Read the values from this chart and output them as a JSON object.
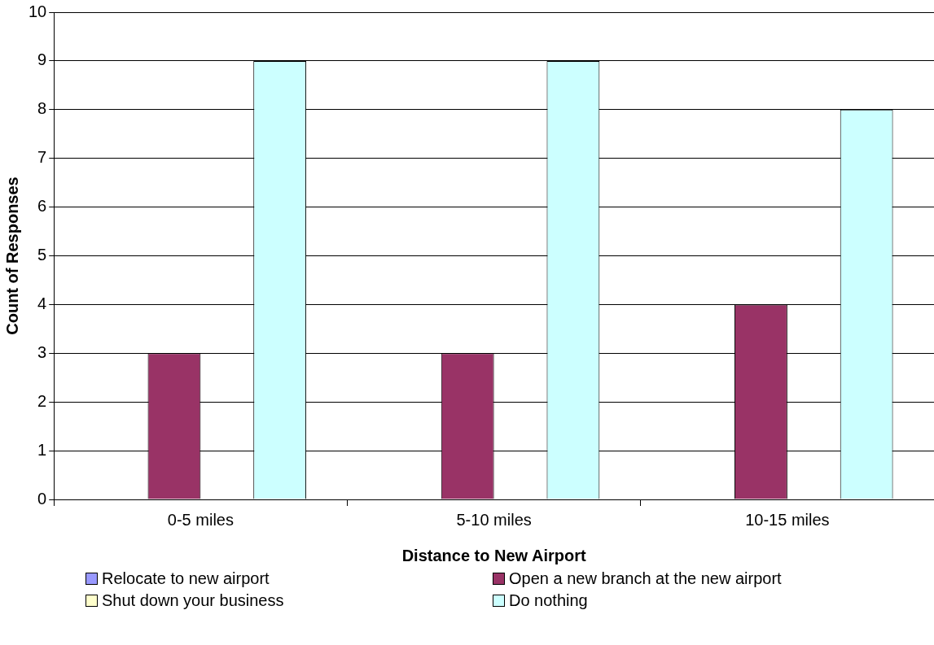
{
  "chart_data": {
    "type": "bar",
    "xlabel": "Distance to New Airport",
    "ylabel": "Count of Responses",
    "categories": [
      "0-5 miles",
      "5-10 miles",
      "10-15 miles"
    ],
    "series": [
      {
        "name": "Relocate to new airport",
        "color": "#9999ff",
        "values": [
          0,
          0,
          0
        ]
      },
      {
        "name": "Open a new branch at the new airport",
        "color": "#993366",
        "values": [
          3,
          3,
          4
        ]
      },
      {
        "name": "Shut down your business",
        "color": "#ffffcc",
        "values": [
          0,
          0,
          0
        ]
      },
      {
        "name": "Do nothing",
        "color": "#ccffff",
        "values": [
          9,
          9,
          8
        ]
      }
    ],
    "ylim": [
      0,
      10
    ],
    "yticks": [
      0,
      1,
      2,
      3,
      4,
      5,
      6,
      7,
      8,
      9,
      10
    ],
    "grid": "y",
    "legend": "bottom"
  }
}
